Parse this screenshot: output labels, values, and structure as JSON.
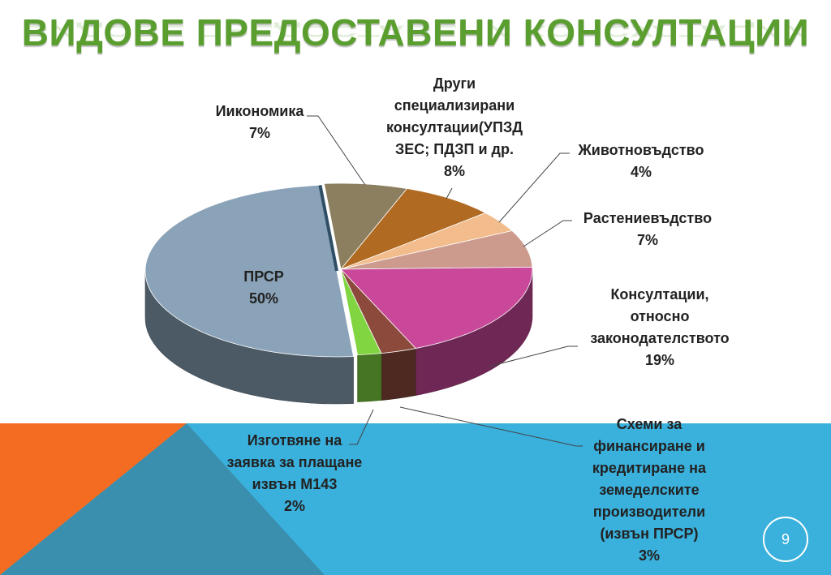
{
  "title": "ВИДОВЕ ПРЕДОСТАВЕНИ КОНСУЛТАЦИИ",
  "page_number": "9",
  "colors": {
    "title": "#5a9e2f",
    "band_blue": "#3ab0dc",
    "band_orange": "#f36c21",
    "band_dark": "#3a8fae"
  },
  "chart_data": {
    "type": "pie",
    "title": "ВИДОВЕ ПРЕДОСТАВЕНИ КОНСУЛТАЦИИ",
    "slices": [
      {
        "key": "ikonomika",
        "label": "Иикономика",
        "value": 7,
        "pct": "7%",
        "color": "#8c7f5f"
      },
      {
        "key": "drugi",
        "label": "Други\nспециализирани\nконсултации(УПЗД\nЗЕС; ПДЗП и др.",
        "value": 8,
        "pct": "8%",
        "color": "#b06a22"
      },
      {
        "key": "zhivot",
        "label": "Животновъдство",
        "value": 4,
        "pct": "4%",
        "color": "#f2bc8c"
      },
      {
        "key": "rast",
        "label": "Растениевъдство",
        "value": 7,
        "pct": "7%",
        "color": "#cc9b8e"
      },
      {
        "key": "konsult",
        "label": "Консултации,\nотносно\nзаконодателството",
        "value": 19,
        "pct": "19%",
        "color": "#c9489a"
      },
      {
        "key": "shemi",
        "label": "Схеми за\nфинансиране и\nкредитиране на\nземеделските\nпроизводители\n(извън ПРСР)",
        "value": 3,
        "pct": "3%",
        "color": "#8c4a3c"
      },
      {
        "key": "izgotvyane",
        "label": "Изготвяне на\nзаявка за плащане\nизвън М143",
        "value": 2,
        "pct": "2%",
        "color": "#80d540"
      },
      {
        "key": "prsr",
        "label": "ПРСР",
        "value": 50,
        "pct": "50%",
        "color": "#8aa3b8"
      }
    ]
  }
}
